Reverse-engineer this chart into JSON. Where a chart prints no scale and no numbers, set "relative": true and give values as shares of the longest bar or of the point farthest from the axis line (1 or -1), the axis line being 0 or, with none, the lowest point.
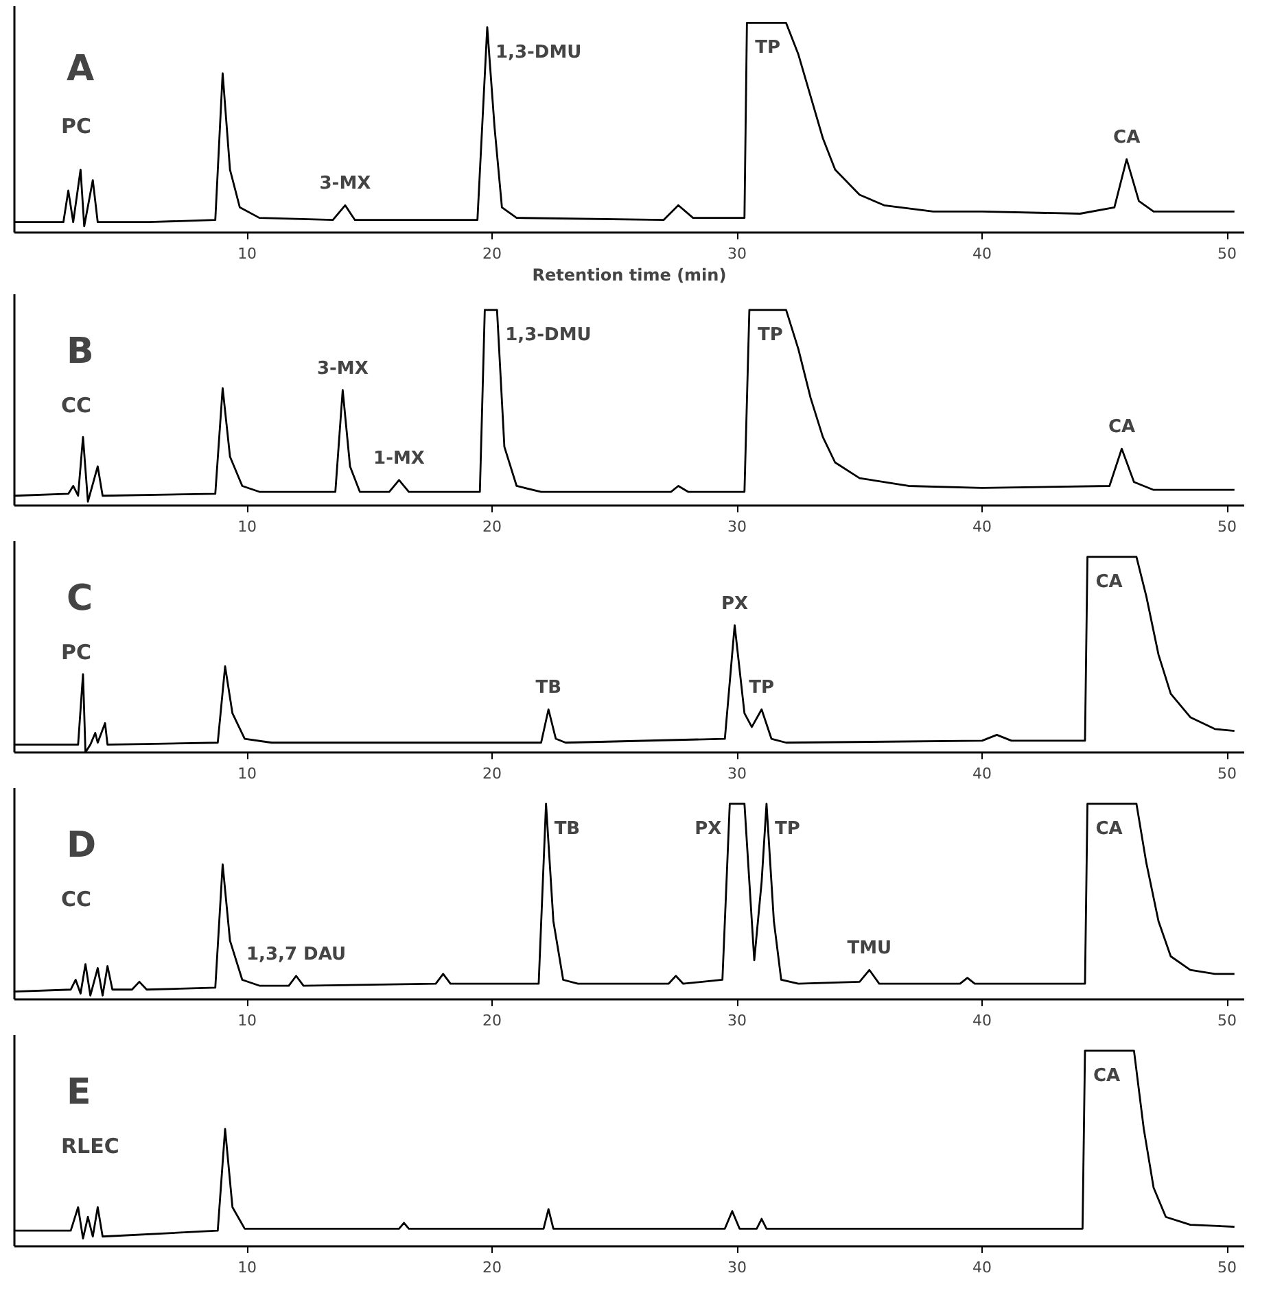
{
  "chart_data": [
    {
      "type": "line",
      "title": "A",
      "subtitle": "PC",
      "xlabel": "Retention time (min)",
      "relative": true,
      "xlim": [
        0.5,
        50.7
      ],
      "xticks": [
        10,
        20,
        30,
        40,
        50
      ],
      "grid": false,
      "line_style": "solid",
      "series": [
        {
          "color": "#000000",
          "x": [
            0.5,
            2.5,
            2.7,
            2.9,
            3.2,
            3.35,
            3.7,
            3.9,
            6,
            8.7,
            9.0,
            9.3,
            9.7,
            10.5,
            13.5,
            14,
            14.4,
            19.4,
            19.8,
            20.1,
            20.4,
            21,
            27,
            27.6,
            28.2,
            30.3,
            30.4,
            32,
            32.5,
            33,
            33.5,
            34,
            35,
            36,
            38,
            40,
            44,
            45.4,
            45.9,
            46.4,
            47,
            50.3
          ],
          "values": [
            0.05,
            0.05,
            0.2,
            0.05,
            0.3,
            0.03,
            0.25,
            0.05,
            0.05,
            0.06,
            0.76,
            0.3,
            0.12,
            0.07,
            0.06,
            0.13,
            0.06,
            0.06,
            0.98,
            0.5,
            0.12,
            0.07,
            0.06,
            0.13,
            0.07,
            0.07,
            1.0,
            1.0,
            0.85,
            0.65,
            0.45,
            0.3,
            0.18,
            0.13,
            0.1,
            0.1,
            0.09,
            0.12,
            0.35,
            0.15,
            0.1,
            0.1
          ]
        }
      ],
      "annotations": [
        {
          "text": "3-MX",
          "x": 14,
          "y": 0.13
        },
        {
          "text": "1,3-DMU",
          "x": 19.8,
          "y": 0.98
        },
        {
          "text": "TP",
          "x": 30.4,
          "y": 1.0
        },
        {
          "text": "CA",
          "x": 45.9,
          "y": 0.35
        }
      ]
    },
    {
      "type": "line",
      "title": "B",
      "subtitle": "CC",
      "relative": true,
      "xlim": [
        0.5,
        50.7
      ],
      "xticks": [
        10,
        20,
        30,
        40,
        50
      ],
      "grid": false,
      "line_style": "solid",
      "series": [
        {
          "color": "#000000",
          "x": [
            0.5,
            2.7,
            2.9,
            3.1,
            3.3,
            3.5,
            3.9,
            4.1,
            8.7,
            9.0,
            9.3,
            9.8,
            10.5,
            13.6,
            13.9,
            14.2,
            14.6,
            15.8,
            16.2,
            16.6,
            19.5,
            19.7,
            20.2,
            20.5,
            21,
            22,
            27.3,
            27.6,
            28,
            30.3,
            30.5,
            32,
            32.5,
            33,
            33.5,
            34,
            35,
            37,
            40,
            45.2,
            45.7,
            46.2,
            47,
            50.3
          ],
          "values": [
            0.05,
            0.06,
            0.1,
            0.05,
            0.35,
            0.02,
            0.2,
            0.05,
            0.06,
            0.6,
            0.25,
            0.1,
            0.07,
            0.07,
            0.59,
            0.2,
            0.07,
            0.07,
            0.13,
            0.07,
            0.07,
            1.0,
            1.0,
            0.3,
            0.1,
            0.07,
            0.07,
            0.1,
            0.07,
            0.07,
            1.0,
            1.0,
            0.8,
            0.55,
            0.35,
            0.22,
            0.14,
            0.1,
            0.09,
            0.1,
            0.29,
            0.12,
            0.08,
            0.08
          ]
        }
      ],
      "annotations": [
        {
          "text": "3-MX",
          "x": 13.9,
          "y": 0.59
        },
        {
          "text": "1-MX",
          "x": 16.2,
          "y": 0.13
        },
        {
          "text": "1,3-DMU",
          "x": 20.2,
          "y": 1.0
        },
        {
          "text": "TP",
          "x": 30.5,
          "y": 1.0
        },
        {
          "text": "CA",
          "x": 45.7,
          "y": 0.29
        }
      ]
    },
    {
      "type": "line",
      "title": "C",
      "subtitle": "PC",
      "relative": true,
      "xlim": [
        0.5,
        50.7
      ],
      "xticks": [
        10,
        20,
        30,
        40,
        50
      ],
      "grid": false,
      "line_style": "solid",
      "series": [
        {
          "color": "#000000",
          "x": [
            0.5,
            3.1,
            3.3,
            3.4,
            3.6,
            3.8,
            3.9,
            4.2,
            4.3,
            8.8,
            9.1,
            9.4,
            9.9,
            11,
            22,
            22.3,
            22.6,
            23,
            29.5,
            29.9,
            30.3,
            30.6,
            31,
            31.4,
            32,
            40,
            40.6,
            41.2,
            44.2,
            44.3,
            46.3,
            46.7,
            47.2,
            47.7,
            48.5,
            49.5,
            50.3
          ],
          "values": [
            0.04,
            0.04,
            0.4,
            0.0,
            0.04,
            0.1,
            0.05,
            0.15,
            0.04,
            0.05,
            0.44,
            0.2,
            0.07,
            0.05,
            0.05,
            0.22,
            0.07,
            0.05,
            0.07,
            0.65,
            0.2,
            0.13,
            0.22,
            0.07,
            0.05,
            0.06,
            0.09,
            0.06,
            0.06,
            1.0,
            1.0,
            0.8,
            0.5,
            0.3,
            0.18,
            0.12,
            0.11
          ]
        }
      ],
      "annotations": [
        {
          "text": "TB",
          "x": 22.3,
          "y": 0.22
        },
        {
          "text": "PX",
          "x": 29.9,
          "y": 0.65
        },
        {
          "text": "TP",
          "x": 31,
          "y": 0.22
        },
        {
          "text": "CA",
          "x": 44.3,
          "y": 1.0
        }
      ]
    },
    {
      "type": "line",
      "title": "D",
      "subtitle": "CC",
      "relative": true,
      "xlim": [
        0.5,
        50.7
      ],
      "xticks": [
        10,
        20,
        30,
        40,
        50
      ],
      "grid": false,
      "line_style": "solid",
      "series": [
        {
          "color": "#000000",
          "x": [
            0.5,
            2.8,
            3.0,
            3.2,
            3.4,
            3.6,
            3.9,
            4.1,
            4.3,
            4.5,
            5.3,
            5.6,
            5.9,
            8.7,
            9.0,
            9.3,
            9.8,
            10.5,
            11.7,
            12,
            12.3,
            17.7,
            18,
            18.3,
            21.9,
            22.2,
            22.5,
            22.9,
            23.5,
            27.2,
            27.5,
            27.8,
            29.4,
            29.7,
            30.3,
            30.7,
            31.0,
            31.2,
            31.5,
            31.8,
            32.5,
            35,
            35.4,
            35.8,
            39.1,
            39.4,
            39.7,
            44.2,
            44.3,
            46.3,
            46.7,
            47.2,
            47.7,
            48.5,
            49.5,
            50.3
          ],
          "values": [
            0.04,
            0.05,
            0.1,
            0.03,
            0.18,
            0.02,
            0.16,
            0.02,
            0.17,
            0.05,
            0.05,
            0.09,
            0.05,
            0.06,
            0.69,
            0.3,
            0.1,
            0.07,
            0.07,
            0.12,
            0.07,
            0.08,
            0.13,
            0.08,
            0.08,
            1.0,
            0.4,
            0.1,
            0.08,
            0.08,
            0.12,
            0.08,
            0.1,
            1.0,
            1.0,
            0.2,
            0.6,
            1.0,
            0.4,
            0.1,
            0.08,
            0.09,
            0.15,
            0.08,
            0.08,
            0.11,
            0.08,
            0.08,
            1.0,
            1.0,
            0.7,
            0.4,
            0.22,
            0.15,
            0.13,
            0.13
          ]
        }
      ],
      "annotations": [
        {
          "text": "1,3,7 DAU",
          "x": 12,
          "y": 0.12
        },
        {
          "text": "TB",
          "x": 22.2,
          "y": 1.0
        },
        {
          "text": "PX",
          "x": 29.7,
          "y": 1.0
        },
        {
          "text": "TP",
          "x": 31.2,
          "y": 1.0
        },
        {
          "text": "TMU",
          "x": 35.4,
          "y": 0.15
        },
        {
          "text": "CA",
          "x": 44.3,
          "y": 1.0
        }
      ]
    },
    {
      "type": "line",
      "title": "E",
      "subtitle": "RLEC",
      "relative": true,
      "xlim": [
        0.5,
        50.7
      ],
      "xticks": [
        10,
        20,
        30,
        40,
        50
      ],
      "grid": false,
      "line_style": "solid",
      "series": [
        {
          "color": "#000000",
          "x": [
            0.5,
            2.8,
            3.1,
            3.3,
            3.5,
            3.7,
            3.9,
            4.1,
            8.8,
            9.1,
            9.4,
            9.9,
            16.2,
            16.4,
            16.6,
            22.1,
            22.3,
            22.5,
            29.5,
            29.8,
            30.1,
            30.8,
            31,
            31.2,
            44.1,
            44.2,
            46.2,
            46.6,
            47,
            47.5,
            48.5,
            50.3
          ],
          "values": [
            0.08,
            0.08,
            0.2,
            0.04,
            0.15,
            0.05,
            0.2,
            0.05,
            0.08,
            0.6,
            0.2,
            0.09,
            0.09,
            0.12,
            0.09,
            0.09,
            0.19,
            0.09,
            0.09,
            0.18,
            0.09,
            0.09,
            0.14,
            0.09,
            0.09,
            1.0,
            1.0,
            0.6,
            0.3,
            0.15,
            0.11,
            0.1
          ]
        }
      ],
      "annotations": [
        {
          "text": "CA",
          "x": 44.2,
          "y": 1.0
        }
      ]
    }
  ]
}
